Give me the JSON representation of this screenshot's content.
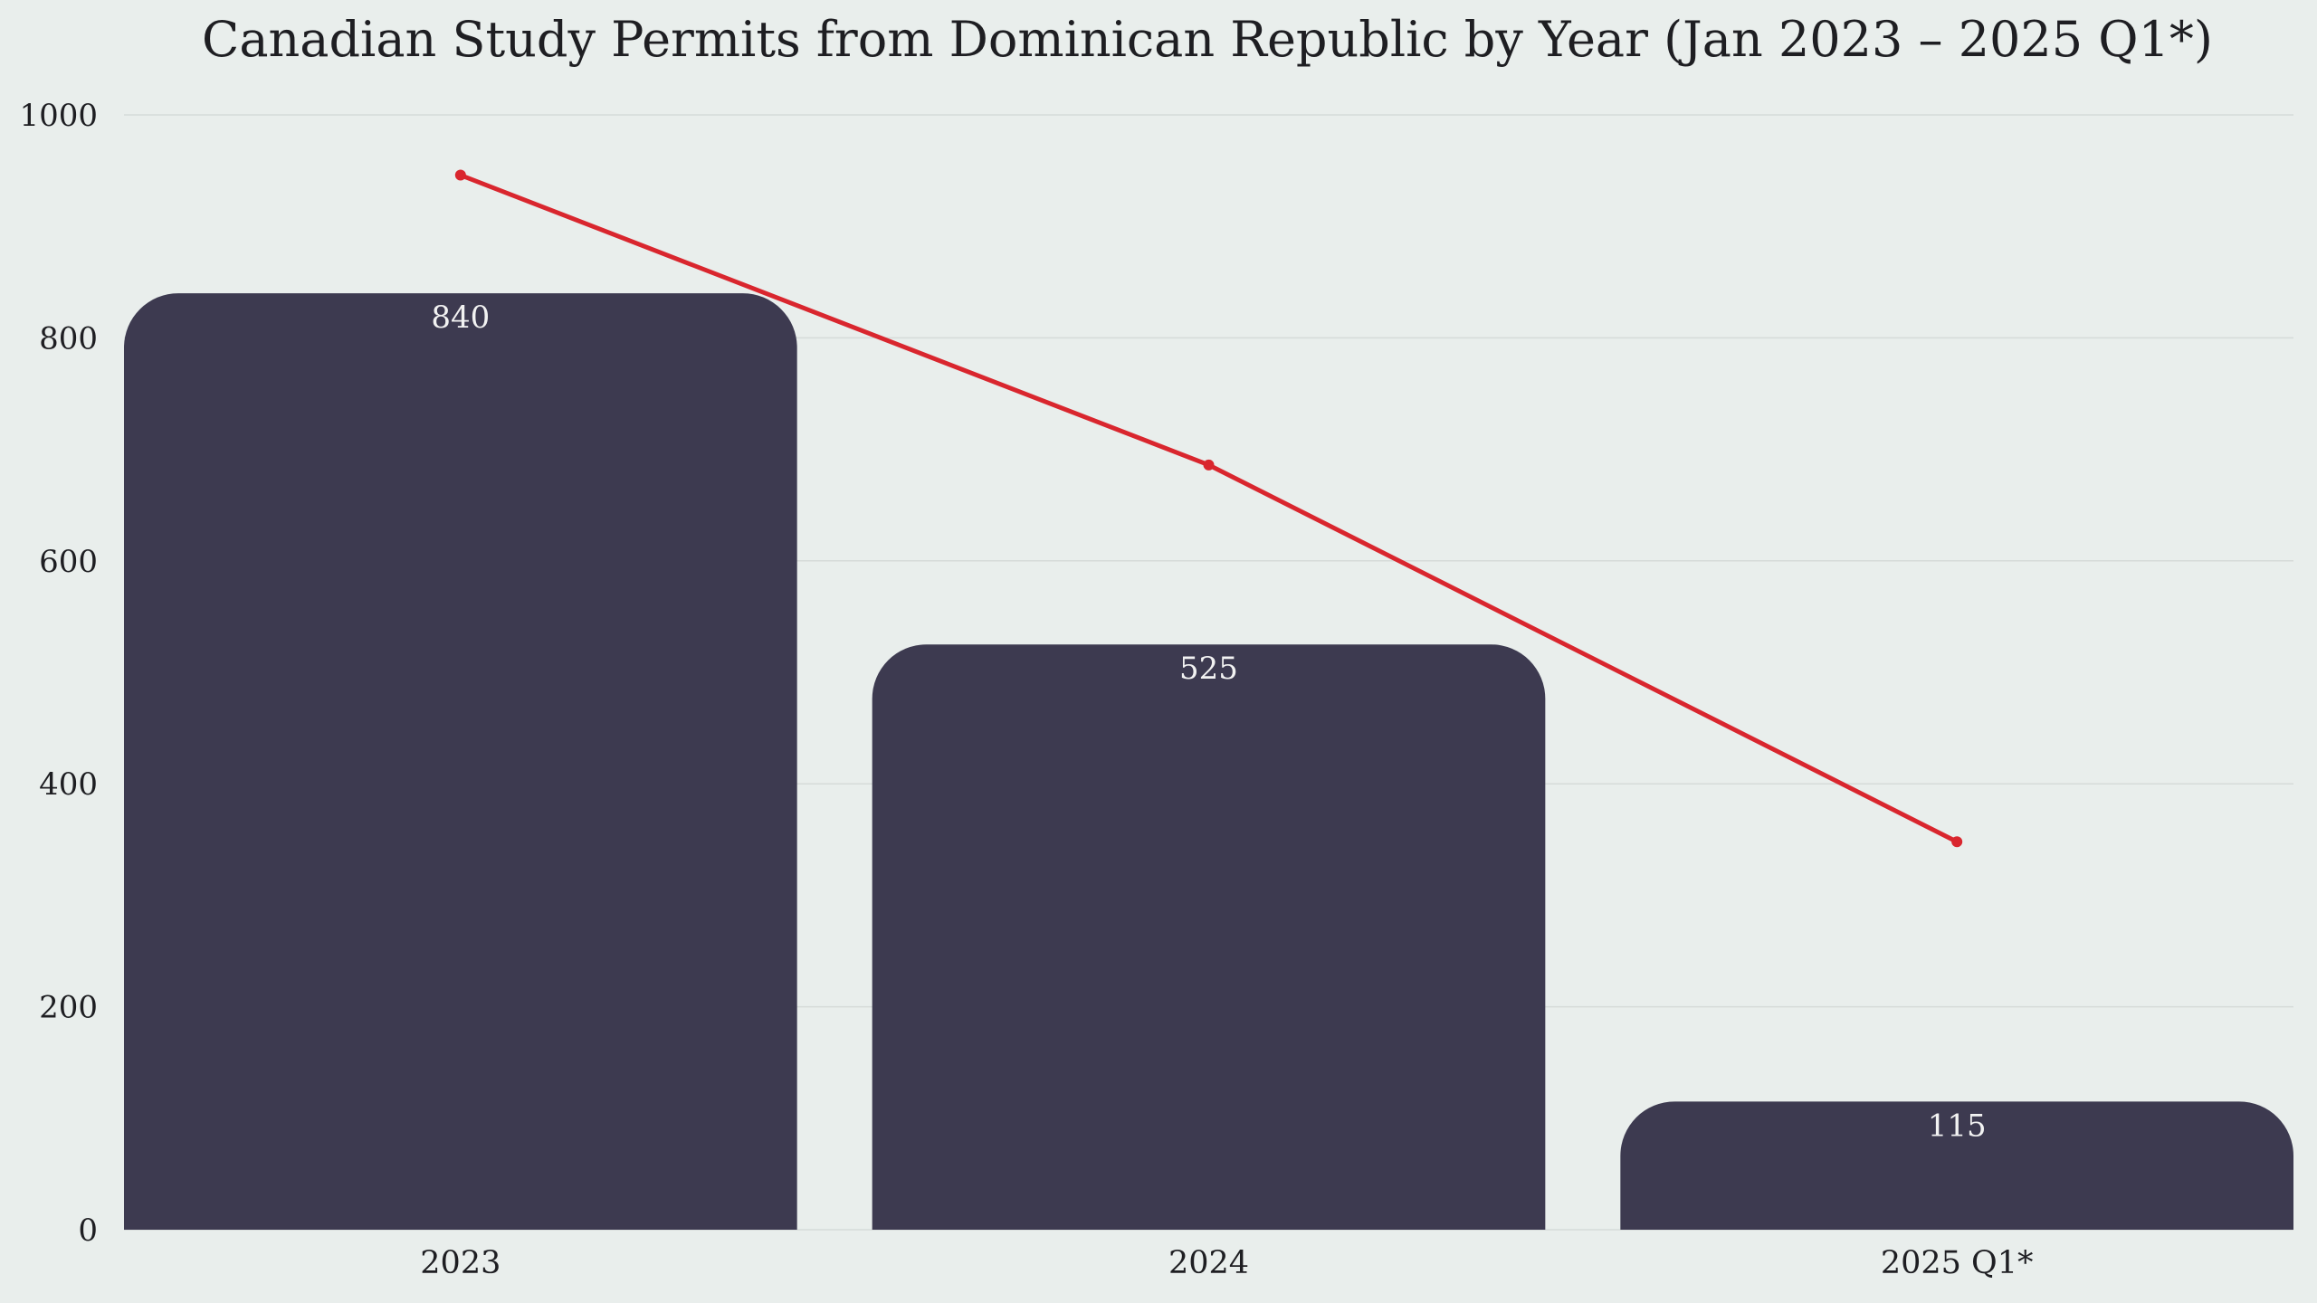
{
  "chart_data": {
    "type": "bar",
    "title": "Canadian Study Permits from Dominican Republic by Year (Jan 2023 – 2025 Q1*)",
    "categories": [
      "2023",
      "2024",
      "2025 Q1*"
    ],
    "series": [
      {
        "type": "bar",
        "values": [
          840,
          525,
          115
        ],
        "color": "#3d3a50",
        "data_labels": [
          "840",
          "525",
          "115"
        ]
      },
      {
        "type": "line",
        "values": [
          946,
          686,
          348
        ],
        "color": "#d9262e"
      }
    ],
    "ylim": [
      0,
      1000
    ],
    "yticks": [
      0,
      200,
      400,
      600,
      800,
      1000
    ],
    "ytick_labels": [
      "0",
      "200",
      "400",
      "600",
      "800",
      "1000"
    ],
    "grid": true,
    "legend": "none"
  }
}
